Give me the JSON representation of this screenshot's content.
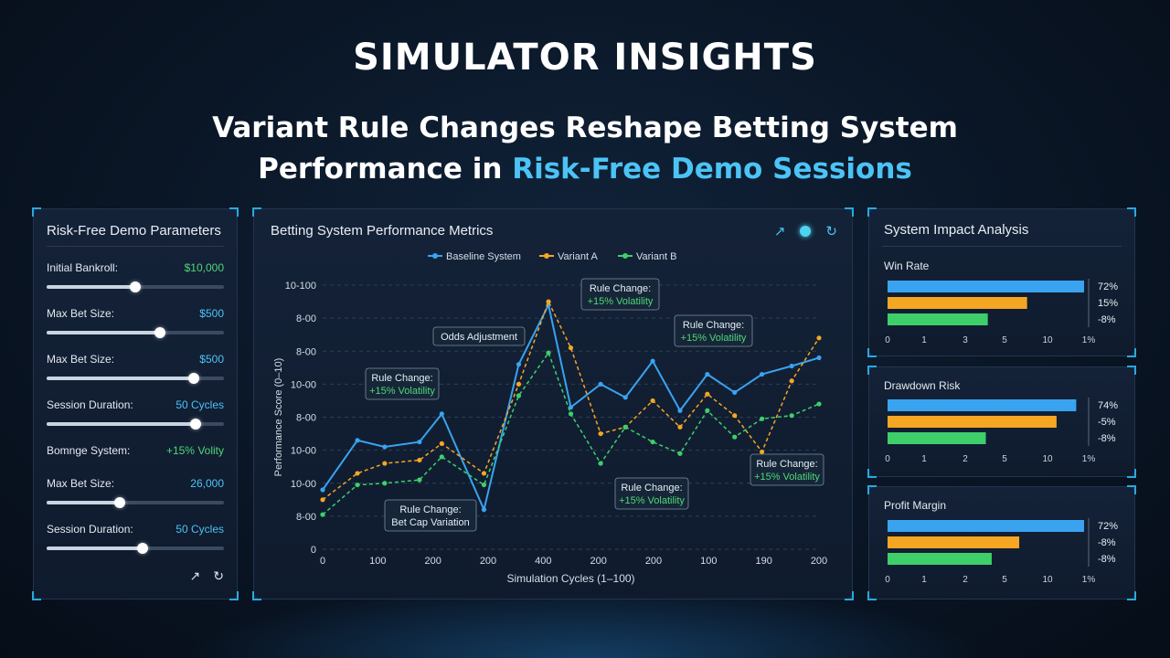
{
  "header": {
    "title": "SIMULATOR INSIGHTS",
    "subtitle_line1": "Variant Rule Changes Reshape Betting System",
    "subtitle_line2_plain": "Performance in ",
    "subtitle_line2_highlight": "Risk-Free Demo Sessions"
  },
  "left_panel": {
    "title": "Risk-Free Demo Parameters",
    "params": [
      {
        "label": "Initial Bankroll:",
        "value": "$10,000",
        "level": 0.5,
        "color": "green"
      },
      {
        "label": "Max Bet Size:",
        "value": "$500",
        "level": 0.64,
        "color": "blue"
      },
      {
        "label": "Max Bet Size:",
        "value": "$500",
        "level": 0.83,
        "color": "blue"
      },
      {
        "label": "Session Duration:",
        "value": "50 Cycles",
        "level": 0.84,
        "color": "blue"
      },
      {
        "label": "Bomnge System:",
        "value": "+15% Volity",
        "level": null,
        "color": "green"
      },
      {
        "label": "Max Bet Size:",
        "value": "26,000",
        "level": 0.41,
        "color": "blue"
      },
      {
        "label": "Session Duration:",
        "value": "50 Cycles",
        "level": 0.54,
        "color": "blue"
      }
    ],
    "icons": [
      "expand-icon",
      "reset-icon"
    ]
  },
  "chart_panel": {
    "title": "Betting System Performance Metrics",
    "icons": [
      "expand-icon",
      "live-dot-icon",
      "refresh-icon"
    ]
  },
  "chart_data": {
    "type": "line",
    "xlabel": "Simulation Cycles (1–100)",
    "ylabel": "Performance Score (0–10)",
    "x_tick_labels": [
      "0",
      "100",
      "200",
      "200",
      "400",
      "200",
      "200",
      "100",
      "190",
      "200"
    ],
    "y_tick_labels": [
      "0",
      "8-00",
      "10-00",
      "10-00",
      "8-00",
      "10-00",
      "8-00",
      "8-00",
      "10-100"
    ],
    "ylim": [
      0,
      8
    ],
    "grid": true,
    "legend_position": "top-center",
    "x": [
      0,
      0.7,
      1.25,
      1.95,
      2.4,
      3.25,
      3.95,
      4.55,
      5,
      5.6,
      6.1,
      6.65,
      7.2,
      7.75,
      8.3,
      8.85,
      9.45,
      10
    ],
    "series": [
      {
        "name": "Baseline System",
        "color": "#3aa3f0",
        "values": [
          1.8,
          3.3,
          3.1,
          3.25,
          4.1,
          1.2,
          5.6,
          7.4,
          4.3,
          5.0,
          4.6,
          5.7,
          4.2,
          5.3,
          4.75,
          5.3,
          5.55,
          5.8
        ]
      },
      {
        "name": "Variant A",
        "color": "#f5a623",
        "values": [
          1.5,
          2.3,
          2.6,
          2.7,
          3.2,
          2.3,
          5.0,
          7.5,
          6.1,
          3.5,
          3.7,
          4.5,
          3.7,
          4.7,
          4.05,
          2.95,
          5.1,
          6.4
        ]
      },
      {
        "name": "Variant B",
        "color": "#3ecf6a",
        "values": [
          1.05,
          1.95,
          2.0,
          2.1,
          2.8,
          1.95,
          4.65,
          5.95,
          4.1,
          2.6,
          3.7,
          3.25,
          2.9,
          4.2,
          3.4,
          3.95,
          4.05,
          4.4
        ]
      }
    ],
    "annotations": [
      {
        "line1": "Rule Change:",
        "line2": "+15% Volatility"
      },
      {
        "line1": "Odds Adjustment",
        "line2": ""
      },
      {
        "line1": "Rule Change:",
        "line2": "+15% Volatility"
      },
      {
        "line1": "Rule Change:",
        "line2": "+15% Volatility"
      },
      {
        "line1": "Rule Change:",
        "line2": "Bet Cap Variation"
      },
      {
        "line1": "Rule Change:",
        "line2": "+15% Volatility"
      },
      {
        "line1": "Rule Change:",
        "line2": "+15% Volatility"
      }
    ]
  },
  "right_panels": [
    {
      "title": "System Impact Analysis",
      "subtitle": "Win Rate",
      "bars": [
        {
          "value": 10.0,
          "label": "72%",
          "color": "#3aa3f0"
        },
        {
          "value": 7.1,
          "label": "15%",
          "color": "#f5a623"
        },
        {
          "value": 5.1,
          "label": "-8%",
          "color": "#3ecf6a"
        }
      ],
      "x_tick_labels": [
        "0",
        "1",
        "3",
        "5",
        "10",
        "1%"
      ]
    },
    {
      "title": "",
      "subtitle": "Drawdown Risk",
      "bars": [
        {
          "value": 9.6,
          "label": "74%",
          "color": "#3aa3f0"
        },
        {
          "value": 8.6,
          "label": "-5%",
          "color": "#f5a623"
        },
        {
          "value": 5.0,
          "label": "-8%",
          "color": "#3ecf6a"
        }
      ],
      "x_tick_labels": [
        "0",
        "1",
        "2",
        "5",
        "10",
        "1%"
      ]
    },
    {
      "title": "",
      "subtitle": "Profit Margin",
      "bars": [
        {
          "value": 10.0,
          "label": "72%",
          "color": "#3aa3f0"
        },
        {
          "value": 6.7,
          "label": "-8%",
          "color": "#f5a623"
        },
        {
          "value": 5.3,
          "label": "-8%",
          "color": "#3ecf6a"
        }
      ],
      "x_tick_labels": [
        "0",
        "1",
        "2",
        "5",
        "10",
        "1%"
      ]
    }
  ]
}
